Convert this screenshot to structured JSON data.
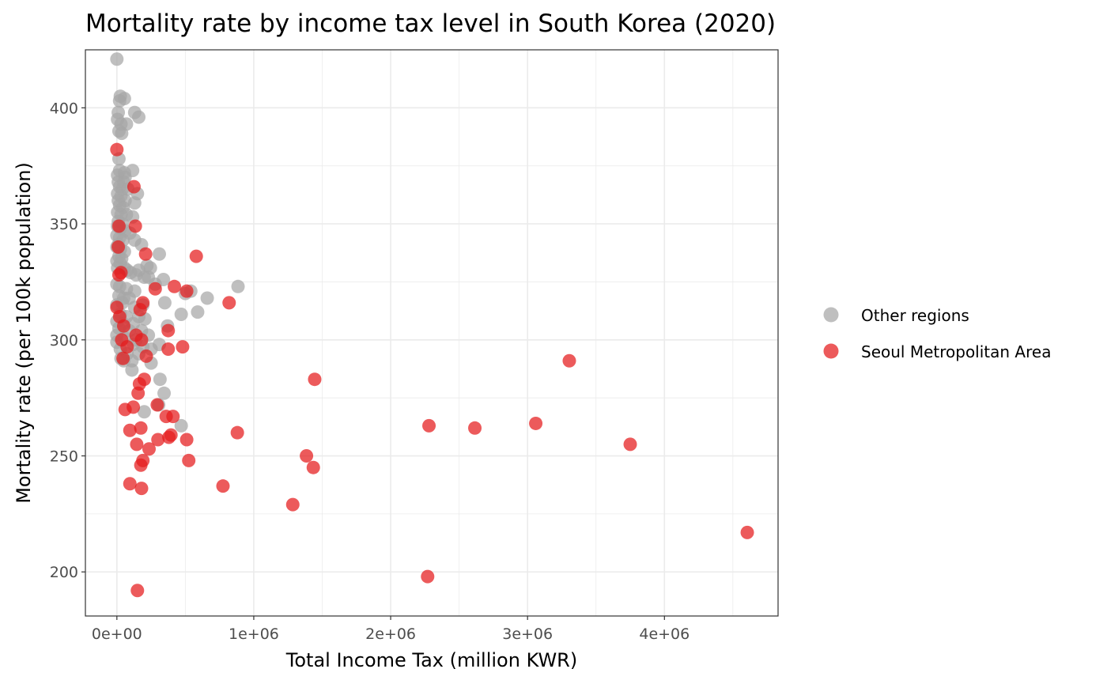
{
  "chart_data": {
    "type": "scatter",
    "title": "Mortality rate by income tax level in South Korea (2020)",
    "xlabel": "Total Income Tax (million KWR)",
    "ylabel": "Mortality rate (per 100k population)",
    "xlim": [
      -230000,
      4830000
    ],
    "ylim": [
      181,
      425
    ],
    "x_ticks": [
      0,
      1000000,
      2000000,
      3000000,
      4000000
    ],
    "x_tick_labels": [
      "0e+00",
      "1e+06",
      "2e+06",
      "3e+06",
      "4e+06"
    ],
    "y_ticks": [
      200,
      250,
      300,
      350,
      400
    ],
    "y_tick_labels": [
      "200",
      "250",
      "300",
      "350",
      "400"
    ],
    "grid": true,
    "legend_position": "right",
    "series": [
      {
        "name": "Other regions",
        "color": "#a6a6a6",
        "points": [
          [
            0,
            421
          ],
          [
            25000,
            405
          ],
          [
            55000,
            404
          ],
          [
            20000,
            403
          ],
          [
            10000,
            398
          ],
          [
            130000,
            398
          ],
          [
            160000,
            396
          ],
          [
            5000,
            395
          ],
          [
            30000,
            393
          ],
          [
            70000,
            393
          ],
          [
            15000,
            390
          ],
          [
            35000,
            389
          ],
          [
            15000,
            378
          ],
          [
            115000,
            373
          ],
          [
            20000,
            373
          ],
          [
            55000,
            372
          ],
          [
            5000,
            371
          ],
          [
            60000,
            370
          ],
          [
            10000,
            368
          ],
          [
            50000,
            368
          ],
          [
            20000,
            366
          ],
          [
            40000,
            365
          ],
          [
            80000,
            365
          ],
          [
            150000,
            363
          ],
          [
            5000,
            363
          ],
          [
            30000,
            362
          ],
          [
            10000,
            360
          ],
          [
            60000,
            360
          ],
          [
            130000,
            359
          ],
          [
            20000,
            358
          ],
          [
            45000,
            357
          ],
          [
            5000,
            355
          ],
          [
            30000,
            354
          ],
          [
            70000,
            354
          ],
          [
            115000,
            353
          ],
          [
            10000,
            351
          ],
          [
            40000,
            350
          ],
          [
            5000,
            349
          ],
          [
            25000,
            348
          ],
          [
            60000,
            347
          ],
          [
            95000,
            346
          ],
          [
            0,
            345
          ],
          [
            20000,
            344
          ],
          [
            45000,
            343
          ],
          [
            130000,
            343
          ],
          [
            10000,
            341
          ],
          [
            180000,
            341
          ],
          [
            0,
            340
          ],
          [
            25000,
            339
          ],
          [
            55000,
            338
          ],
          [
            310000,
            337
          ],
          [
            15000,
            336
          ],
          [
            35000,
            335
          ],
          [
            0,
            334
          ],
          [
            25000,
            333
          ],
          [
            5000,
            331
          ],
          [
            55000,
            331
          ],
          [
            75000,
            330
          ],
          [
            220000,
            332
          ],
          [
            245000,
            331
          ],
          [
            100000,
            329
          ],
          [
            140000,
            328
          ],
          [
            160000,
            330
          ],
          [
            200000,
            327
          ],
          [
            230000,
            327
          ],
          [
            340000,
            326
          ],
          [
            0,
            324
          ],
          [
            20000,
            323
          ],
          [
            70000,
            322
          ],
          [
            130000,
            321
          ],
          [
            540000,
            321
          ],
          [
            885000,
            323
          ],
          [
            280000,
            324
          ],
          [
            500000,
            320
          ],
          [
            660000,
            318
          ],
          [
            15000,
            319
          ],
          [
            50000,
            318
          ],
          [
            90000,
            318
          ],
          [
            350000,
            316
          ],
          [
            40000,
            316
          ],
          [
            0,
            315
          ],
          [
            190000,
            315
          ],
          [
            130000,
            314
          ],
          [
            590000,
            312
          ],
          [
            470000,
            311
          ],
          [
            25000,
            311
          ],
          [
            70000,
            310
          ],
          [
            160000,
            310
          ],
          [
            205000,
            309
          ],
          [
            0,
            308
          ],
          [
            45000,
            307
          ],
          [
            120000,
            307
          ],
          [
            370000,
            306
          ],
          [
            15000,
            305
          ],
          [
            90000,
            304
          ],
          [
            180000,
            304
          ],
          [
            230000,
            302
          ],
          [
            0,
            302
          ],
          [
            55000,
            301
          ],
          [
            140000,
            300
          ],
          [
            120000,
            298
          ],
          [
            310000,
            298
          ],
          [
            190000,
            297
          ],
          [
            25000,
            296
          ],
          [
            250000,
            296
          ],
          [
            75000,
            294
          ],
          [
            160000,
            294
          ],
          [
            30000,
            292
          ],
          [
            110000,
            291
          ],
          [
            50000,
            291
          ],
          [
            250000,
            290
          ],
          [
            110000,
            287
          ],
          [
            315000,
            283
          ],
          [
            345000,
            277
          ],
          [
            305000,
            272
          ],
          [
            470000,
            263
          ],
          [
            200000,
            269
          ],
          [
            0,
            299
          ]
        ]
      },
      {
        "name": "Seoul Metropolitan Area",
        "color": "#e41a1c",
        "points": [
          [
            0,
            382
          ],
          [
            125000,
            366
          ],
          [
            135000,
            349
          ],
          [
            15000,
            349
          ],
          [
            10000,
            340
          ],
          [
            210000,
            337
          ],
          [
            580000,
            336
          ],
          [
            30000,
            329
          ],
          [
            15000,
            328
          ],
          [
            420000,
            323
          ],
          [
            280000,
            322
          ],
          [
            510000,
            321
          ],
          [
            820000,
            316
          ],
          [
            190000,
            316
          ],
          [
            0,
            314
          ],
          [
            170000,
            313
          ],
          [
            20000,
            310
          ],
          [
            50000,
            306
          ],
          [
            375000,
            304
          ],
          [
            140000,
            302
          ],
          [
            35000,
            300
          ],
          [
            180000,
            300
          ],
          [
            480000,
            297
          ],
          [
            75000,
            297
          ],
          [
            375000,
            296
          ],
          [
            215000,
            293
          ],
          [
            45000,
            292
          ],
          [
            1445000,
            283
          ],
          [
            200000,
            283
          ],
          [
            165000,
            281
          ],
          [
            3305000,
            291
          ],
          [
            295000,
            272
          ],
          [
            120000,
            271
          ],
          [
            60000,
            270
          ],
          [
            155000,
            277
          ],
          [
            360000,
            267
          ],
          [
            410000,
            267
          ],
          [
            2280000,
            263
          ],
          [
            3060000,
            264
          ],
          [
            2615000,
            262
          ],
          [
            95000,
            261
          ],
          [
            175000,
            262
          ],
          [
            880000,
            260
          ],
          [
            395000,
            259
          ],
          [
            380000,
            258
          ],
          [
            300000,
            257
          ],
          [
            510000,
            257
          ],
          [
            145000,
            255
          ],
          [
            3750000,
            255
          ],
          [
            235000,
            253
          ],
          [
            1385000,
            250
          ],
          [
            190000,
            248
          ],
          [
            525000,
            248
          ],
          [
            175000,
            246
          ],
          [
            1435000,
            245
          ],
          [
            95000,
            238
          ],
          [
            180000,
            236
          ],
          [
            775000,
            237
          ],
          [
            1285000,
            229
          ],
          [
            4605000,
            217
          ],
          [
            2270000,
            198
          ],
          [
            150000,
            192
          ]
        ]
      }
    ]
  }
}
